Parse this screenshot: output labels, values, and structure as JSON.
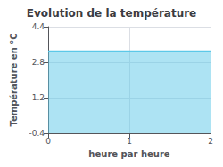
{
  "chart_data": {
    "type": "area",
    "title": "Evolution de la température",
    "xlabel": "heure par heure",
    "ylabel": "Température en °C",
    "x": [
      0,
      1,
      2
    ],
    "values": [
      3.3,
      3.3,
      3.3
    ],
    "color": "#5bc8e8",
    "xlim": [
      0,
      2
    ],
    "xticks": [
      0,
      1,
      2
    ],
    "ylim": [
      -0.4,
      4.4
    ],
    "yticks": [
      -0.4,
      1.2,
      2.8,
      4.4
    ],
    "grid": true
  }
}
